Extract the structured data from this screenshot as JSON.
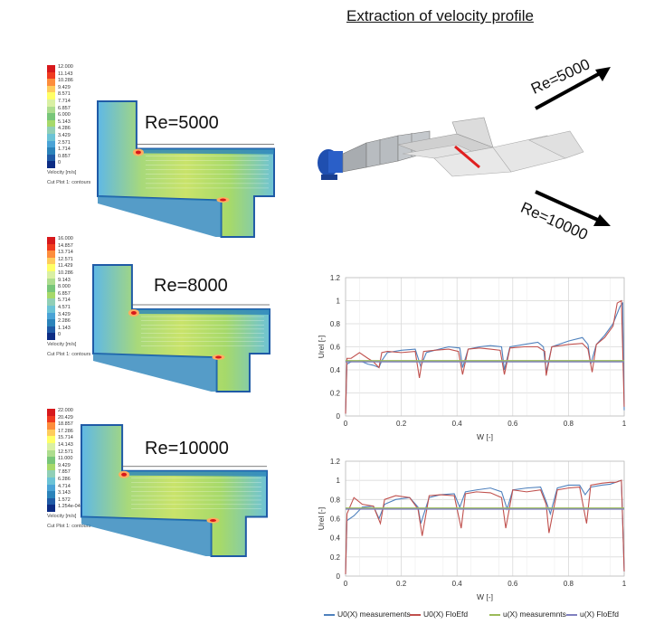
{
  "title": "Extraction of velocity profile",
  "contours": [
    {
      "re_label": "Re=5000",
      "velocity_label": "Velocity [m/s]",
      "cut_label": "Cut Plot 1: contours",
      "scale_ticks": [
        "12.000",
        "11.143",
        "10.286",
        "9.429",
        "8.571",
        "7.714",
        "6.857",
        "6.000",
        "5.143",
        "4.286",
        "3.429",
        "2.571",
        "1.714",
        "0.857",
        "0"
      ]
    },
    {
      "re_label": "Re=8000",
      "velocity_label": "Velocity [m/s]",
      "cut_label": "Cut Plot 1: contours",
      "scale_ticks": [
        "16.000",
        "14.857",
        "13.714",
        "12.571",
        "11.429",
        "10.286",
        "9.143",
        "8.000",
        "6.857",
        "5.714",
        "4.571",
        "3.429",
        "2.286",
        "1.143",
        "0"
      ]
    },
    {
      "re_label": "Re=10000",
      "velocity_label": "Velocity [m/s]",
      "cut_label": "Cut Plot 1: contours",
      "scale_ticks": [
        "22.000",
        "20.429",
        "18.857",
        "17.286",
        "15.714",
        "14.143",
        "12.571",
        "11.000",
        "9.429",
        "7.857",
        "6.286",
        "4.714",
        "3.143",
        "1.572",
        "1.254e-04"
      ]
    }
  ],
  "scale_colors": [
    "#d7191c",
    "#f03b20",
    "#fd8d3c",
    "#fecc5c",
    "#ffff66",
    "#d9f0a3",
    "#addd8e",
    "#78c679",
    "#a6d96a",
    "#91cfb6",
    "#6bc3d6",
    "#4aa3d6",
    "#2b83ba",
    "#1f5aa6",
    "#0c2c84"
  ],
  "model_labels": {
    "re_top": "Re=5000",
    "re_bottom": "Re=10000"
  },
  "legend": [
    "U0(X) measurements",
    "U0(X) FloEfd",
    "u(X) measuremnts",
    "u(X) FloEfd"
  ],
  "series_colors": [
    "#4f81bd",
    "#c0504d",
    "#9bbb59",
    "#7f7fbf"
  ],
  "chart_data": [
    {
      "type": "line",
      "title": "",
      "xlabel": "W [-]",
      "ylabel": "Urel [-]",
      "xlim": [
        0,
        1
      ],
      "ylim": [
        0,
        1.2
      ],
      "xticks": [
        "0",
        "0.2",
        "0.4",
        "0.6",
        "0.8",
        "1"
      ],
      "yticks": [
        "0",
        "0.2",
        "0.4",
        "0.6",
        "0.8",
        "1",
        "1.2"
      ],
      "grid": true,
      "series": [
        {
          "name": "U0(X) measurements",
          "x": [
            0,
            0.005,
            0.02,
            0.05,
            0.08,
            0.1,
            0.12,
            0.13,
            0.15,
            0.2,
            0.25,
            0.27,
            0.29,
            0.32,
            0.37,
            0.41,
            0.42,
            0.44,
            0.48,
            0.52,
            0.56,
            0.57,
            0.59,
            0.64,
            0.69,
            0.71,
            0.72,
            0.74,
            0.8,
            0.85,
            0.87,
            0.88,
            0.9,
            0.93,
            0.96,
            0.985,
            0.995,
            1
          ],
          "y": [
            0.02,
            0.45,
            0.47,
            0.48,
            0.45,
            0.44,
            0.42,
            0.48,
            0.55,
            0.57,
            0.58,
            0.43,
            0.55,
            0.57,
            0.6,
            0.59,
            0.42,
            0.58,
            0.6,
            0.61,
            0.6,
            0.4,
            0.6,
            0.62,
            0.64,
            0.6,
            0.38,
            0.6,
            0.65,
            0.68,
            0.62,
            0.45,
            0.62,
            0.7,
            0.8,
            0.95,
            0.98,
            0.05
          ]
        },
        {
          "name": "U0(X) FloEfd",
          "x": [
            0,
            0.005,
            0.02,
            0.05,
            0.08,
            0.1,
            0.12,
            0.13,
            0.15,
            0.2,
            0.25,
            0.265,
            0.28,
            0.32,
            0.37,
            0.405,
            0.42,
            0.44,
            0.48,
            0.52,
            0.555,
            0.57,
            0.59,
            0.64,
            0.69,
            0.715,
            0.72,
            0.74,
            0.8,
            0.85,
            0.87,
            0.885,
            0.9,
            0.93,
            0.96,
            0.975,
            0.99,
            1
          ],
          "y": [
            0.02,
            0.5,
            0.5,
            0.55,
            0.5,
            0.47,
            0.42,
            0.55,
            0.56,
            0.55,
            0.56,
            0.33,
            0.56,
            0.57,
            0.58,
            0.56,
            0.36,
            0.58,
            0.59,
            0.58,
            0.57,
            0.36,
            0.59,
            0.6,
            0.6,
            0.56,
            0.35,
            0.6,
            0.62,
            0.63,
            0.58,
            0.38,
            0.62,
            0.68,
            0.78,
            0.98,
            1.0,
            0.08
          ]
        },
        {
          "name": "u(X) measuremnts",
          "x": [
            0,
            1
          ],
          "y": [
            0.48,
            0.48
          ]
        },
        {
          "name": "u(X) FloEfd",
          "x": [
            0,
            1
          ],
          "y": [
            0.47,
            0.47
          ]
        }
      ]
    },
    {
      "type": "line",
      "title": "",
      "xlabel": "W [-]",
      "ylabel": "Urel [-]",
      "xlim": [
        0,
        1
      ],
      "ylim": [
        0,
        1.2
      ],
      "xticks": [
        "0",
        "0.2",
        "0.4",
        "0.6",
        "0.8",
        "1"
      ],
      "yticks": [
        "0",
        "0.2",
        "0.4",
        "0.6",
        "0.8",
        "1",
        "1.2"
      ],
      "grid": true,
      "series": [
        {
          "name": "U0(X) measurements",
          "x": [
            0,
            0.005,
            0.03,
            0.06,
            0.1,
            0.12,
            0.14,
            0.18,
            0.23,
            0.26,
            0.27,
            0.3,
            0.34,
            0.39,
            0.41,
            0.43,
            0.47,
            0.52,
            0.56,
            0.58,
            0.6,
            0.65,
            0.7,
            0.72,
            0.735,
            0.76,
            0.8,
            0.84,
            0.86,
            0.88,
            0.92,
            0.95,
            0.97,
            0.99,
            1
          ],
          "y": [
            0.02,
            0.58,
            0.63,
            0.72,
            0.73,
            0.6,
            0.75,
            0.8,
            0.82,
            0.72,
            0.55,
            0.82,
            0.85,
            0.86,
            0.72,
            0.88,
            0.9,
            0.92,
            0.88,
            0.7,
            0.9,
            0.92,
            0.93,
            0.78,
            0.65,
            0.92,
            0.95,
            0.95,
            0.85,
            0.93,
            0.95,
            0.96,
            0.98,
            1.0,
            0.05
          ]
        },
        {
          "name": "U0(X) FloEfd",
          "x": [
            0,
            0.005,
            0.03,
            0.06,
            0.1,
            0.125,
            0.14,
            0.18,
            0.23,
            0.26,
            0.275,
            0.3,
            0.34,
            0.39,
            0.415,
            0.43,
            0.47,
            0.52,
            0.56,
            0.575,
            0.6,
            0.65,
            0.7,
            0.72,
            0.73,
            0.76,
            0.8,
            0.84,
            0.865,
            0.88,
            0.92,
            0.95,
            0.97,
            0.99,
            1
          ],
          "y": [
            0.02,
            0.65,
            0.82,
            0.75,
            0.73,
            0.55,
            0.8,
            0.84,
            0.82,
            0.7,
            0.42,
            0.84,
            0.85,
            0.84,
            0.5,
            0.86,
            0.88,
            0.87,
            0.82,
            0.5,
            0.9,
            0.88,
            0.9,
            0.75,
            0.45,
            0.9,
            0.92,
            0.93,
            0.55,
            0.95,
            0.97,
            0.98,
            0.98,
            1.0,
            0.05
          ]
        },
        {
          "name": "u(X) measuremnts",
          "x": [
            0,
            1
          ],
          "y": [
            0.71,
            0.71
          ]
        },
        {
          "name": "u(X) FloEfd",
          "x": [
            0,
            1
          ],
          "y": [
            0.7,
            0.7
          ]
        }
      ]
    }
  ]
}
